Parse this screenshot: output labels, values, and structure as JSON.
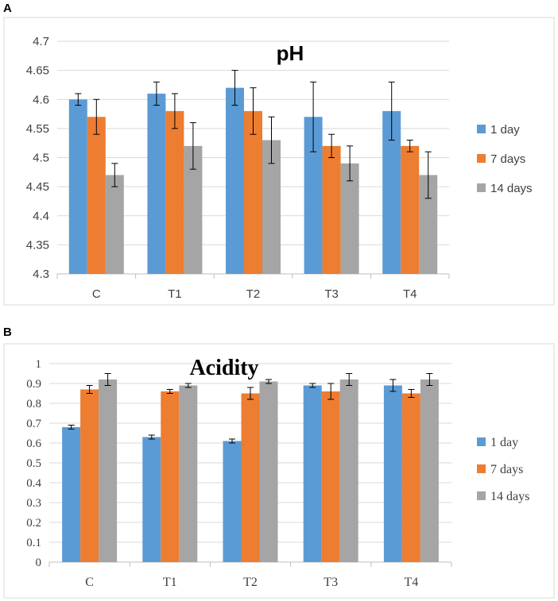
{
  "chart_data": [
    {
      "panel": "A",
      "type": "bar",
      "title": "pH",
      "xlabel": "",
      "ylabel": "",
      "categories": [
        "C",
        "T1",
        "T2",
        "T3",
        "T4"
      ],
      "ylim": [
        4.3,
        4.7
      ],
      "yticks": [
        "4.3",
        "4.35",
        "4.4",
        "4.45",
        "4.5",
        "4.55",
        "4.6",
        "4.65",
        "4.7"
      ],
      "legend_position": "right",
      "series": [
        {
          "name": "1 day",
          "color": "#5B9BD5",
          "values": [
            4.6,
            4.61,
            4.62,
            4.57,
            4.58
          ],
          "errors": [
            0.01,
            0.02,
            0.03,
            0.06,
            0.05
          ]
        },
        {
          "name": "7 days",
          "color": "#ED7D31",
          "values": [
            4.57,
            4.58,
            4.58,
            4.52,
            4.52
          ],
          "errors": [
            0.03,
            0.03,
            0.04,
            0.02,
            0.01
          ]
        },
        {
          "name": "14 days",
          "color": "#A5A5A5",
          "values": [
            4.47,
            4.52,
            4.53,
            4.49,
            4.47
          ],
          "errors": [
            0.02,
            0.04,
            0.04,
            0.03,
            0.04
          ]
        }
      ]
    },
    {
      "panel": "B",
      "type": "bar",
      "title": "Acidity",
      "xlabel": "",
      "ylabel": "",
      "categories": [
        "C",
        "T1",
        "T2",
        "T3",
        "T4"
      ],
      "ylim": [
        0,
        1
      ],
      "yticks": [
        "0",
        "0.1",
        "0.2",
        "0.3",
        "0.4",
        "0.5",
        "0.6",
        "0.7",
        "0.8",
        "0.9",
        "1"
      ],
      "legend_position": "right",
      "series": [
        {
          "name": "1 day",
          "color": "#5B9BD5",
          "values": [
            0.68,
            0.63,
            0.61,
            0.89,
            0.89
          ],
          "errors": [
            0.01,
            0.01,
            0.01,
            0.01,
            0.03
          ]
        },
        {
          "name": "7 days",
          "color": "#ED7D31",
          "values": [
            0.87,
            0.86,
            0.85,
            0.86,
            0.85
          ],
          "errors": [
            0.02,
            0.01,
            0.03,
            0.04,
            0.02
          ]
        },
        {
          "name": "14 days",
          "color": "#A5A5A5",
          "values": [
            0.92,
            0.89,
            0.91,
            0.92,
            0.92
          ],
          "errors": [
            0.03,
            0.01,
            0.01,
            0.03,
            0.03
          ]
        }
      ]
    }
  ]
}
